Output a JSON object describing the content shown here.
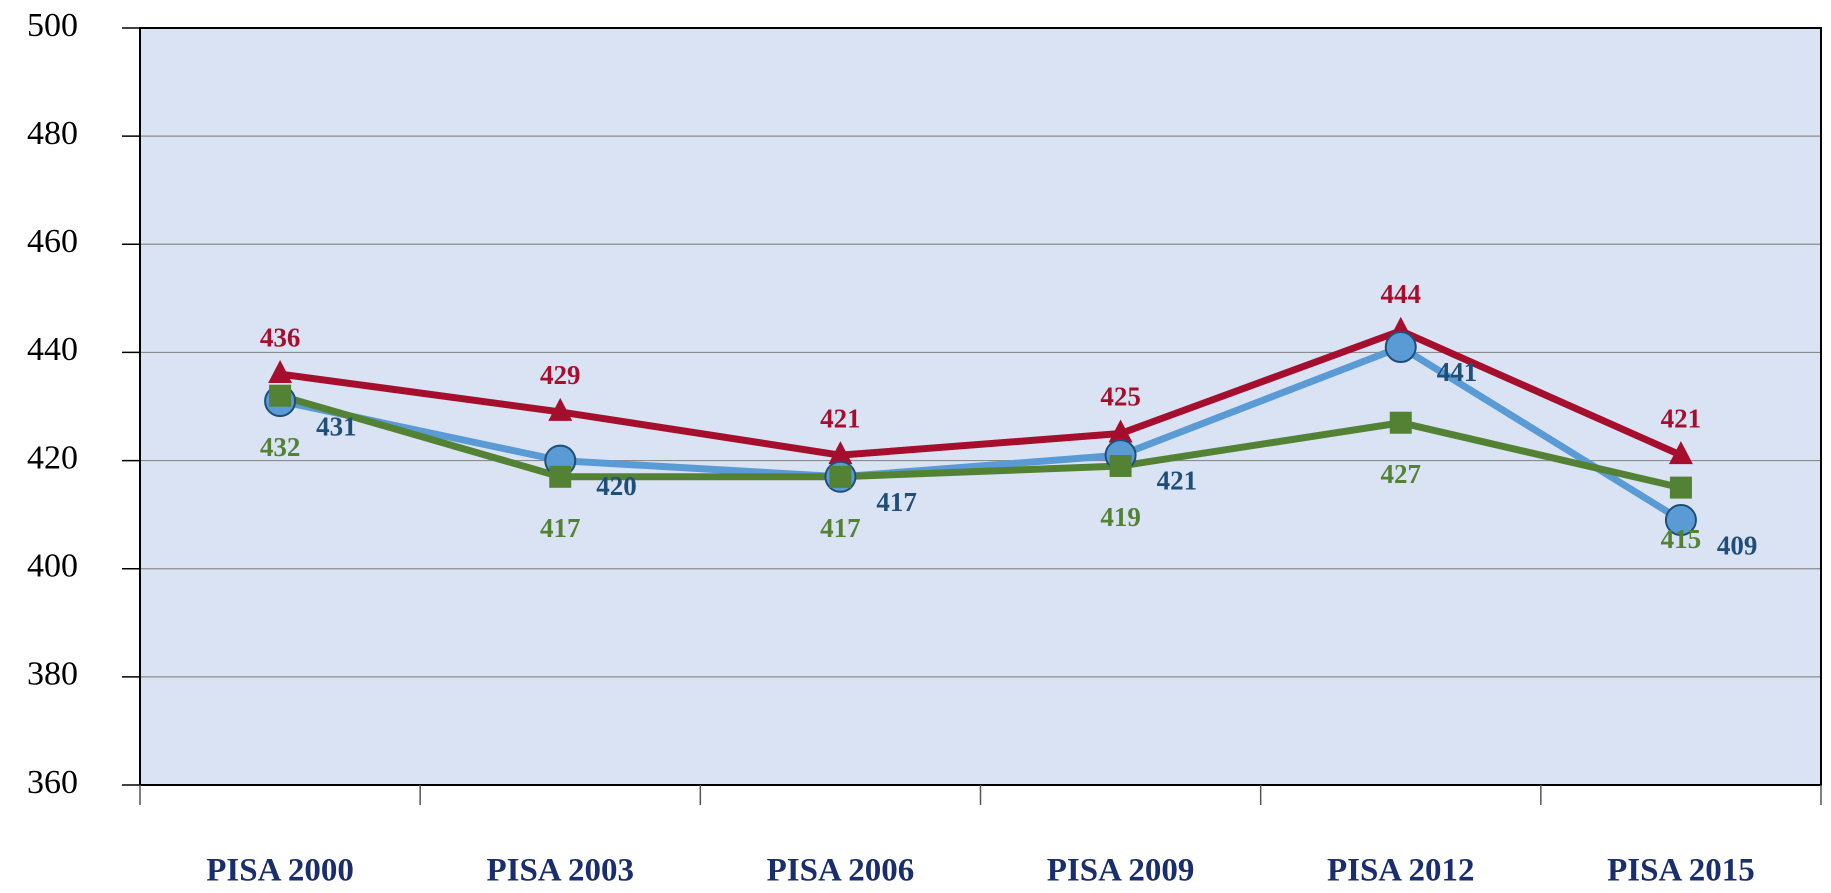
{
  "chart_data": {
    "type": "line",
    "categories": [
      "PISA 2000",
      "PISA 2003",
      "PISA 2006",
      "PISA 2009",
      "PISA 2012",
      "PISA 2015"
    ],
    "series": [
      {
        "color": "#5b9bd5",
        "label_color": "#1f4e79",
        "marker": "circle",
        "values": [
          431,
          420,
          417,
          421,
          441,
          409
        ]
      },
      {
        "color": "#a50f2d",
        "label_color": "#a50f2d",
        "marker": "triangle",
        "values": [
          436,
          429,
          421,
          425,
          444,
          421
        ]
      },
      {
        "color": "#548235",
        "label_color": "#548235",
        "marker": "square",
        "values": [
          432,
          417,
          417,
          419,
          427,
          415
        ]
      }
    ],
    "ylim": [
      360,
      500
    ],
    "yticks": [
      360,
      380,
      400,
      420,
      440,
      460,
      480,
      500
    ],
    "grid": true
  }
}
